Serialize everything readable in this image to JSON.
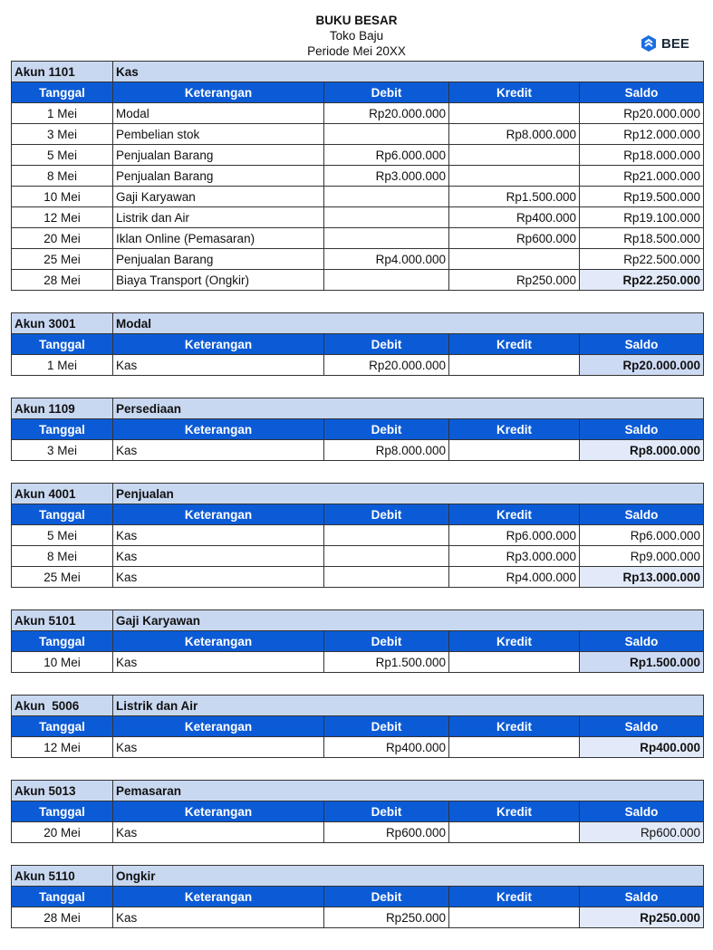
{
  "header": {
    "title": "BUKU BESAR",
    "company": "Toko Baju",
    "period": "Periode Mei 20XX"
  },
  "logo": {
    "text": "BEE",
    "icon": "bee-logo-icon",
    "color": "#1b6fe0"
  },
  "columns": [
    "Tanggal",
    "Keterangan",
    "Debit",
    "Kredit",
    "Saldo"
  ],
  "colors": {
    "account_bg": "#c9d8f1",
    "header_bg": "#0c5bd6",
    "final_light": "#e2eaf9",
    "final_dark": "#cddaf3"
  },
  "accounts": [
    {
      "code": "Akun 1101",
      "name": "Kas",
      "final_shade": "light",
      "final_bold": true,
      "rows": [
        {
          "date": "1 Mei",
          "desc": "Modal",
          "debit": "Rp20.000.000",
          "credit": "",
          "saldo": "Rp20.000.000"
        },
        {
          "date": "3 Mei",
          "desc": "Pembelian stok",
          "debit": "",
          "credit": "Rp8.000.000",
          "saldo": "Rp12.000.000"
        },
        {
          "date": "5 Mei",
          "desc": "Penjualan Barang",
          "debit": "Rp6.000.000",
          "credit": "",
          "saldo": "Rp18.000.000"
        },
        {
          "date": "8 Mei",
          "desc": "Penjualan Barang",
          "debit": "Rp3.000.000",
          "credit": "",
          "saldo": "Rp21.000.000"
        },
        {
          "date": "10 Mei",
          "desc": "Gaji Karyawan",
          "debit": "",
          "credit": "Rp1.500.000",
          "saldo": "Rp19.500.000"
        },
        {
          "date": "12 Mei",
          "desc": "Listrik dan Air",
          "debit": "",
          "credit": "Rp400.000",
          "saldo": "Rp19.100.000"
        },
        {
          "date": "20 Mei",
          "desc": "Iklan Online (Pemasaran)",
          "debit": "",
          "credit": "Rp600.000",
          "saldo": "Rp18.500.000"
        },
        {
          "date": "25 Mei",
          "desc": "Penjualan Barang",
          "debit": "Rp4.000.000",
          "credit": "",
          "saldo": "Rp22.500.000"
        },
        {
          "date": "28 Mei",
          "desc": "Biaya Transport (Ongkir)",
          "debit": "",
          "credit": "Rp250.000",
          "saldo": "Rp22.250.000"
        }
      ]
    },
    {
      "code": "Akun 3001",
      "name": "Modal",
      "final_shade": "dark",
      "final_bold": true,
      "rows": [
        {
          "date": "1 Mei",
          "desc": "Kas",
          "debit": "Rp20.000.000",
          "credit": "",
          "saldo": "Rp20.000.000"
        }
      ]
    },
    {
      "code": "Akun 1109",
      "name": "Persediaan",
      "final_shade": "light",
      "final_bold": true,
      "rows": [
        {
          "date": "3 Mei",
          "desc": "Kas",
          "debit": "Rp8.000.000",
          "credit": "",
          "saldo": "Rp8.000.000"
        }
      ]
    },
    {
      "code": "Akun 4001",
      "name": "Penjualan",
      "final_shade": "light",
      "final_bold": true,
      "rows": [
        {
          "date": "5 Mei",
          "desc": "Kas",
          "debit": "",
          "credit": "Rp6.000.000",
          "saldo": "Rp6.000.000"
        },
        {
          "date": "8 Mei",
          "desc": "Kas",
          "debit": "",
          "credit": "Rp3.000.000",
          "saldo": "Rp9.000.000"
        },
        {
          "date": "25 Mei",
          "desc": "Kas",
          "debit": "",
          "credit": "Rp4.000.000",
          "saldo": "Rp13.000.000"
        }
      ]
    },
    {
      "code": "Akun 5101",
      "name": "Gaji Karyawan",
      "final_shade": "dark",
      "final_bold": true,
      "rows": [
        {
          "date": "10 Mei",
          "desc": "Kas",
          "debit": "Rp1.500.000",
          "credit": "",
          "saldo": "Rp1.500.000"
        }
      ]
    },
    {
      "code": "Akun  5006",
      "name": "Listrik dan Air",
      "final_shade": "light",
      "final_bold": true,
      "rows": [
        {
          "date": "12 Mei",
          "desc": "Kas",
          "debit": "Rp400.000",
          "credit": "",
          "saldo": "Rp400.000"
        }
      ]
    },
    {
      "code": "Akun 5013",
      "name": "Pemasaran",
      "final_shade": "light",
      "final_bold": false,
      "rows": [
        {
          "date": "20 Mei",
          "desc": "Kas",
          "debit": "Rp600.000",
          "credit": "",
          "saldo": "Rp600.000"
        }
      ]
    },
    {
      "code": "Akun 5110",
      "name": "Ongkir",
      "final_shade": "light",
      "final_bold": true,
      "rows": [
        {
          "date": "28 Mei",
          "desc": "Kas",
          "debit": "Rp250.000",
          "credit": "",
          "saldo": "Rp250.000"
        }
      ]
    }
  ]
}
